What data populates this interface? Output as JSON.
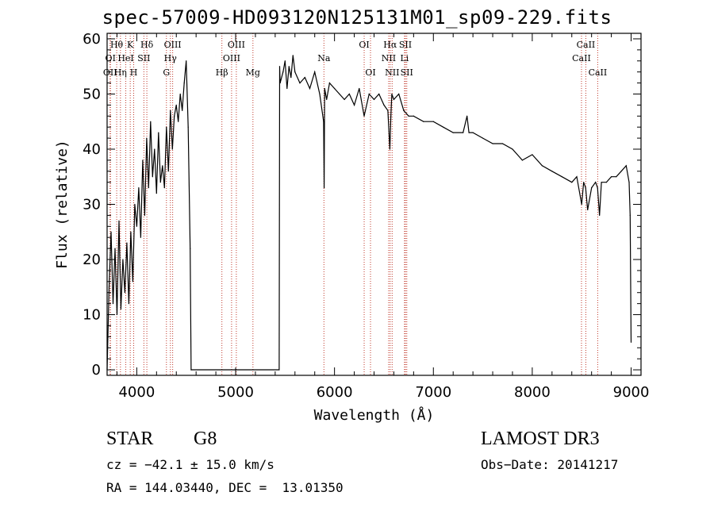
{
  "chart_data": {
    "type": "line",
    "title": "spec-57009-HD093120N125131M01_sp09-229.fits",
    "xlabel": "Wavelength (Å)",
    "ylabel": "Flux (relative)",
    "xlim": [
      3700,
      9100
    ],
    "ylim": [
      -1,
      61
    ],
    "xticks": [
      4000,
      5000,
      6000,
      7000,
      8000,
      9000
    ],
    "yticks": [
      0,
      10,
      20,
      30,
      40,
      50,
      60
    ],
    "series": [
      {
        "name": "flux",
        "x": [
          3700,
          3720,
          3740,
          3760,
          3780,
          3800,
          3820,
          3840,
          3860,
          3880,
          3900,
          3920,
          3940,
          3960,
          3980,
          4000,
          4020,
          4040,
          4060,
          4080,
          4100,
          4120,
          4140,
          4160,
          4180,
          4200,
          4220,
          4240,
          4260,
          4280,
          4300,
          4320,
          4340,
          4360,
          4380,
          4400,
          4420,
          4440,
          4460,
          4480,
          4500,
          4520,
          4540,
          4550,
          4555,
          5440,
          5445,
          5450,
          5480,
          5500,
          5520,
          5540,
          5560,
          5580,
          5600,
          5650,
          5700,
          5750,
          5800,
          5850,
          5890,
          5895,
          5900,
          5920,
          5950,
          6000,
          6050,
          6100,
          6150,
          6200,
          6250,
          6300,
          6350,
          6400,
          6450,
          6500,
          6540,
          6560,
          6570,
          6580,
          6600,
          6650,
          6700,
          6750,
          6800,
          6900,
          7000,
          7100,
          7200,
          7300,
          7340,
          7360,
          7400,
          7500,
          7600,
          7700,
          7800,
          7900,
          8000,
          8100,
          8200,
          8300,
          8400,
          8450,
          8500,
          8520,
          8540,
          8560,
          8600,
          8640,
          8660,
          8680,
          8700,
          8750,
          8800,
          8850,
          8900,
          8950,
          8980,
          8990,
          9000
        ],
        "y": [
          0,
          15,
          25,
          12,
          22,
          10,
          27,
          11,
          20,
          14,
          23,
          12,
          25,
          16,
          30,
          26,
          33,
          24,
          38,
          28,
          42,
          33,
          45,
          35,
          40,
          32,
          43,
          34,
          37,
          33,
          44,
          36,
          47,
          40,
          46,
          48,
          45,
          50,
          47,
          52,
          56,
          44,
          22,
          0,
          0,
          0,
          55,
          52,
          54,
          56,
          51,
          55,
          53,
          57,
          54,
          52,
          53,
          51,
          54,
          50,
          45,
          33,
          51,
          49,
          52,
          51,
          50,
          49,
          50,
          48,
          51,
          46,
          50,
          49,
          50,
          48,
          47,
          40,
          46,
          50,
          49,
          50,
          47,
          46,
          46,
          45,
          45,
          44,
          43,
          43,
          46,
          43,
          43,
          42,
          41,
          41,
          40,
          38,
          39,
          37,
          36,
          35,
          34,
          35,
          30,
          34,
          33,
          29,
          33,
          34,
          33,
          28,
          34,
          34,
          35,
          35,
          36,
          37,
          34,
          28,
          5
        ]
      }
    ],
    "line_markers": [
      {
        "wl": 3730,
        "label": "OII",
        "row": 3
      },
      {
        "wl": 3734,
        "label": "OI",
        "row": 2
      },
      {
        "wl": 3797,
        "label": "Hθ",
        "row": 1
      },
      {
        "wl": 3835,
        "label": "Hη",
        "row": 3
      },
      {
        "wl": 3889,
        "label": "HeI",
        "row": 2
      },
      {
        "wl": 3934,
        "label": "K",
        "row": 1
      },
      {
        "wl": 3969,
        "label": "H",
        "row": 3
      },
      {
        "wl": 4072,
        "label": "SII",
        "row": 2
      },
      {
        "wl": 4102,
        "label": "Hδ",
        "row": 1
      },
      {
        "wl": 4300,
        "label": "G",
        "row": 3
      },
      {
        "wl": 4340,
        "label": "Hγ",
        "row": 2
      },
      {
        "wl": 4363,
        "label": "OIII",
        "row": 1
      },
      {
        "wl": 4861,
        "label": "Hβ",
        "row": 3
      },
      {
        "wl": 4959,
        "label": "OIII",
        "row": 2
      },
      {
        "wl": 5007,
        "label": "OIII",
        "row": 1
      },
      {
        "wl": 5175,
        "label": "Mg",
        "row": 3
      },
      {
        "wl": 5893,
        "label": "Na",
        "row": 2
      },
      {
        "wl": 6300,
        "label": "OI",
        "row": 1
      },
      {
        "wl": 6364,
        "label": "OI",
        "row": 3
      },
      {
        "wl": 6548,
        "label": "NII",
        "row": 2
      },
      {
        "wl": 6563,
        "label": "Hα",
        "row": 1
      },
      {
        "wl": 6583,
        "label": "NII",
        "row": 3
      },
      {
        "wl": 6708,
        "label": "Li",
        "row": 2
      },
      {
        "wl": 6717,
        "label": "SII",
        "row": 1
      },
      {
        "wl": 6731,
        "label": "SII",
        "row": 3
      },
      {
        "wl": 8498,
        "label": "CaII",
        "row": 2
      },
      {
        "wl": 8542,
        "label": "CaII",
        "row": 1
      },
      {
        "wl": 8662,
        "label": "CaII",
        "row": 3
      }
    ]
  },
  "info": {
    "object_class": "STAR",
    "subclass": "G8",
    "survey": "LAMOST DR3",
    "cz": "cz = −42.1 ± 15.0 km/s",
    "obs_date": "Obs−Date: 20141217",
    "coords": "RA = 144.03440, DEC =  13.01350"
  }
}
